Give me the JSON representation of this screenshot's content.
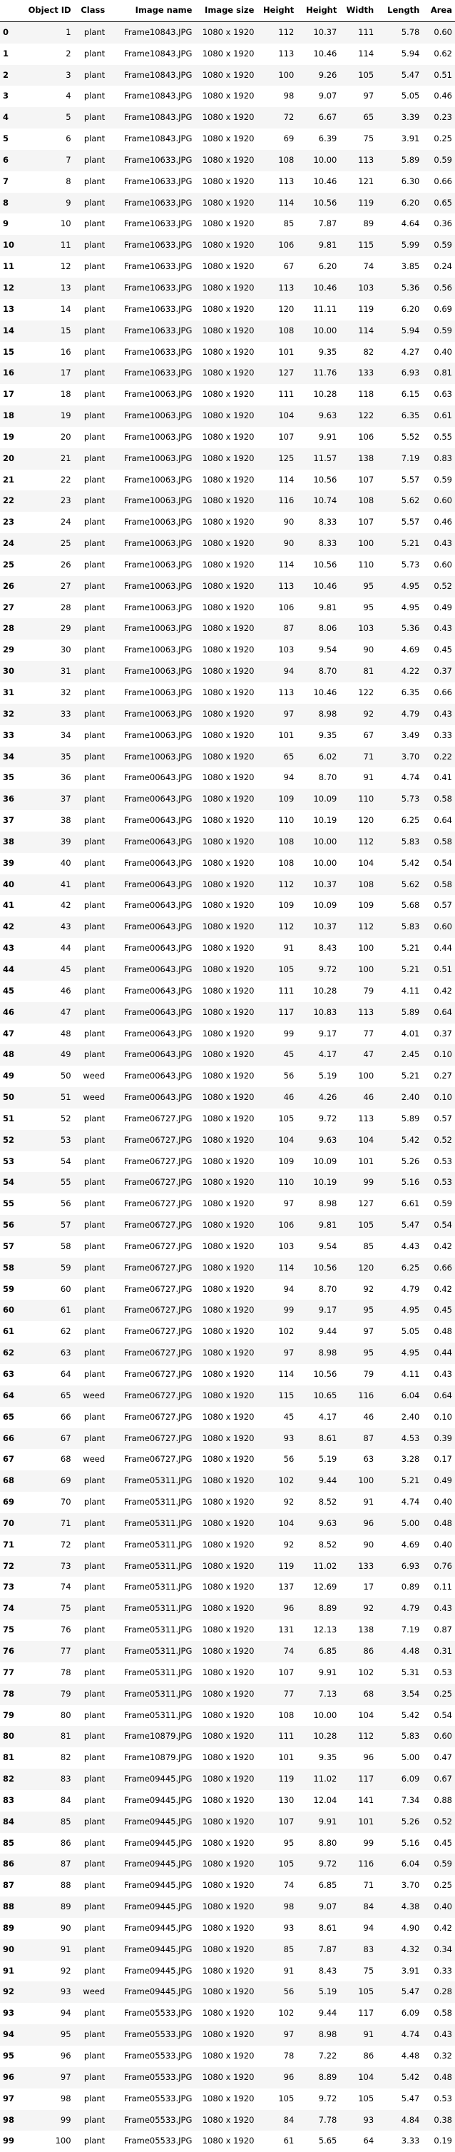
{
  "columns": [
    "",
    "Object ID",
    "Class",
    "Image name",
    "Image size",
    "Height",
    "Height",
    "Width",
    "Length",
    "Area"
  ],
  "rows": [
    [
      "0",
      "1",
      "plant",
      "Frame10843.JPG",
      "1080 x 1920",
      "112",
      "10.37",
      "111",
      "5.78",
      "0.60"
    ],
    [
      "1",
      "2",
      "plant",
      "Frame10843.JPG",
      "1080 x 1920",
      "113",
      "10.46",
      "114",
      "5.94",
      "0.62"
    ],
    [
      "2",
      "3",
      "plant",
      "Frame10843.JPG",
      "1080 x 1920",
      "100",
      "9.26",
      "105",
      "5.47",
      "0.51"
    ],
    [
      "3",
      "4",
      "plant",
      "Frame10843.JPG",
      "1080 x 1920",
      "98",
      "9.07",
      "97",
      "5.05",
      "0.46"
    ],
    [
      "4",
      "5",
      "plant",
      "Frame10843.JPG",
      "1080 x 1920",
      "72",
      "6.67",
      "65",
      "3.39",
      "0.23"
    ],
    [
      "5",
      "6",
      "plant",
      "Frame10843.JPG",
      "1080 x 1920",
      "69",
      "6.39",
      "75",
      "3.91",
      "0.25"
    ],
    [
      "6",
      "7",
      "plant",
      "Frame10633.JPG",
      "1080 x 1920",
      "108",
      "10.00",
      "113",
      "5.89",
      "0.59"
    ],
    [
      "7",
      "8",
      "plant",
      "Frame10633.JPG",
      "1080 x 1920",
      "113",
      "10.46",
      "121",
      "6.30",
      "0.66"
    ],
    [
      "8",
      "9",
      "plant",
      "Frame10633.JPG",
      "1080 x 1920",
      "114",
      "10.56",
      "119",
      "6.20",
      "0.65"
    ],
    [
      "9",
      "10",
      "plant",
      "Frame10633.JPG",
      "1080 x 1920",
      "85",
      "7.87",
      "89",
      "4.64",
      "0.36"
    ],
    [
      "10",
      "11",
      "plant",
      "Frame10633.JPG",
      "1080 x 1920",
      "106",
      "9.81",
      "115",
      "5.99",
      "0.59"
    ],
    [
      "11",
      "12",
      "plant",
      "Frame10633.JPG",
      "1080 x 1920",
      "67",
      "6.20",
      "74",
      "3.85",
      "0.24"
    ],
    [
      "12",
      "13",
      "plant",
      "Frame10633.JPG",
      "1080 x 1920",
      "113",
      "10.46",
      "103",
      "5.36",
      "0.56"
    ],
    [
      "13",
      "14",
      "plant",
      "Frame10633.JPG",
      "1080 x 1920",
      "120",
      "11.11",
      "119",
      "6.20",
      "0.69"
    ],
    [
      "14",
      "15",
      "plant",
      "Frame10633.JPG",
      "1080 x 1920",
      "108",
      "10.00",
      "114",
      "5.94",
      "0.59"
    ],
    [
      "15",
      "16",
      "plant",
      "Frame10633.JPG",
      "1080 x 1920",
      "101",
      "9.35",
      "82",
      "4.27",
      "0.40"
    ],
    [
      "16",
      "17",
      "plant",
      "Frame10633.JPG",
      "1080 x 1920",
      "127",
      "11.76",
      "133",
      "6.93",
      "0.81"
    ],
    [
      "17",
      "18",
      "plant",
      "Frame10063.JPG",
      "1080 x 1920",
      "111",
      "10.28",
      "118",
      "6.15",
      "0.63"
    ],
    [
      "18",
      "19",
      "plant",
      "Frame10063.JPG",
      "1080 x 1920",
      "104",
      "9.63",
      "122",
      "6.35",
      "0.61"
    ],
    [
      "19",
      "20",
      "plant",
      "Frame10063.JPG",
      "1080 x 1920",
      "107",
      "9.91",
      "106",
      "5.52",
      "0.55"
    ],
    [
      "20",
      "21",
      "plant",
      "Frame10063.JPG",
      "1080 x 1920",
      "125",
      "11.57",
      "138",
      "7.19",
      "0.83"
    ],
    [
      "21",
      "22",
      "plant",
      "Frame10063.JPG",
      "1080 x 1920",
      "114",
      "10.56",
      "107",
      "5.57",
      "0.59"
    ],
    [
      "22",
      "23",
      "plant",
      "Frame10063.JPG",
      "1080 x 1920",
      "116",
      "10.74",
      "108",
      "5.62",
      "0.60"
    ],
    [
      "23",
      "24",
      "plant",
      "Frame10063.JPG",
      "1080 x 1920",
      "90",
      "8.33",
      "107",
      "5.57",
      "0.46"
    ],
    [
      "24",
      "25",
      "plant",
      "Frame10063.JPG",
      "1080 x 1920",
      "90",
      "8.33",
      "100",
      "5.21",
      "0.43"
    ],
    [
      "25",
      "26",
      "plant",
      "Frame10063.JPG",
      "1080 x 1920",
      "114",
      "10.56",
      "110",
      "5.73",
      "0.60"
    ],
    [
      "26",
      "27",
      "plant",
      "Frame10063.JPG",
      "1080 x 1920",
      "113",
      "10.46",
      "95",
      "4.95",
      "0.52"
    ],
    [
      "27",
      "28",
      "plant",
      "Frame10063.JPG",
      "1080 x 1920",
      "106",
      "9.81",
      "95",
      "4.95",
      "0.49"
    ],
    [
      "28",
      "29",
      "plant",
      "Frame10063.JPG",
      "1080 x 1920",
      "87",
      "8.06",
      "103",
      "5.36",
      "0.43"
    ],
    [
      "29",
      "30",
      "plant",
      "Frame10063.JPG",
      "1080 x 1920",
      "103",
      "9.54",
      "90",
      "4.69",
      "0.45"
    ],
    [
      "30",
      "31",
      "plant",
      "Frame10063.JPG",
      "1080 x 1920",
      "94",
      "8.70",
      "81",
      "4.22",
      "0.37"
    ],
    [
      "31",
      "32",
      "plant",
      "Frame10063.JPG",
      "1080 x 1920",
      "113",
      "10.46",
      "122",
      "6.35",
      "0.66"
    ],
    [
      "32",
      "33",
      "plant",
      "Frame10063.JPG",
      "1080 x 1920",
      "97",
      "8.98",
      "92",
      "4.79",
      "0.43"
    ],
    [
      "33",
      "34",
      "plant",
      "Frame10063.JPG",
      "1080 x 1920",
      "101",
      "9.35",
      "67",
      "3.49",
      "0.33"
    ],
    [
      "34",
      "35",
      "plant",
      "Frame10063.JPG",
      "1080 x 1920",
      "65",
      "6.02",
      "71",
      "3.70",
      "0.22"
    ],
    [
      "35",
      "36",
      "plant",
      "Frame00643.JPG",
      "1080 x 1920",
      "94",
      "8.70",
      "91",
      "4.74",
      "0.41"
    ],
    [
      "36",
      "37",
      "plant",
      "Frame00643.JPG",
      "1080 x 1920",
      "109",
      "10.09",
      "110",
      "5.73",
      "0.58"
    ],
    [
      "37",
      "38",
      "plant",
      "Frame00643.JPG",
      "1080 x 1920",
      "110",
      "10.19",
      "120",
      "6.25",
      "0.64"
    ],
    [
      "38",
      "39",
      "plant",
      "Frame00643.JPG",
      "1080 x 1920",
      "108",
      "10.00",
      "112",
      "5.83",
      "0.58"
    ],
    [
      "39",
      "40",
      "plant",
      "Frame00643.JPG",
      "1080 x 1920",
      "108",
      "10.00",
      "104",
      "5.42",
      "0.54"
    ],
    [
      "40",
      "41",
      "plant",
      "Frame00643.JPG",
      "1080 x 1920",
      "112",
      "10.37",
      "108",
      "5.62",
      "0.58"
    ],
    [
      "41",
      "42",
      "plant",
      "Frame00643.JPG",
      "1080 x 1920",
      "109",
      "10.09",
      "109",
      "5.68",
      "0.57"
    ],
    [
      "42",
      "43",
      "plant",
      "Frame00643.JPG",
      "1080 x 1920",
      "112",
      "10.37",
      "112",
      "5.83",
      "0.60"
    ],
    [
      "43",
      "44",
      "plant",
      "Frame00643.JPG",
      "1080 x 1920",
      "91",
      "8.43",
      "100",
      "5.21",
      "0.44"
    ],
    [
      "44",
      "45",
      "plant",
      "Frame00643.JPG",
      "1080 x 1920",
      "105",
      "9.72",
      "100",
      "5.21",
      "0.51"
    ],
    [
      "45",
      "46",
      "plant",
      "Frame00643.JPG",
      "1080 x 1920",
      "111",
      "10.28",
      "79",
      "4.11",
      "0.42"
    ],
    [
      "46",
      "47",
      "plant",
      "Frame00643.JPG",
      "1080 x 1920",
      "117",
      "10.83",
      "113",
      "5.89",
      "0.64"
    ],
    [
      "47",
      "48",
      "plant",
      "Frame00643.JPG",
      "1080 x 1920",
      "99",
      "9.17",
      "77",
      "4.01",
      "0.37"
    ],
    [
      "48",
      "49",
      "plant",
      "Frame00643.JPG",
      "1080 x 1920",
      "45",
      "4.17",
      "47",
      "2.45",
      "0.10"
    ],
    [
      "49",
      "50",
      "weed",
      "Frame00643.JPG",
      "1080 x 1920",
      "56",
      "5.19",
      "100",
      "5.21",
      "0.27"
    ],
    [
      "50",
      "51",
      "weed",
      "Frame00643.JPG",
      "1080 x 1920",
      "46",
      "4.26",
      "46",
      "2.40",
      "0.10"
    ],
    [
      "51",
      "52",
      "plant",
      "Frame06727.JPG",
      "1080 x 1920",
      "105",
      "9.72",
      "113",
      "5.89",
      "0.57"
    ],
    [
      "52",
      "53",
      "plant",
      "Frame06727.JPG",
      "1080 x 1920",
      "104",
      "9.63",
      "104",
      "5.42",
      "0.52"
    ],
    [
      "53",
      "54",
      "plant",
      "Frame06727.JPG",
      "1080 x 1920",
      "109",
      "10.09",
      "101",
      "5.26",
      "0.53"
    ],
    [
      "54",
      "55",
      "plant",
      "Frame06727.JPG",
      "1080 x 1920",
      "110",
      "10.19",
      "99",
      "5.16",
      "0.53"
    ],
    [
      "55",
      "56",
      "plant",
      "Frame06727.JPG",
      "1080 x 1920",
      "97",
      "8.98",
      "127",
      "6.61",
      "0.59"
    ],
    [
      "56",
      "57",
      "plant",
      "Frame06727.JPG",
      "1080 x 1920",
      "106",
      "9.81",
      "105",
      "5.47",
      "0.54"
    ],
    [
      "57",
      "58",
      "plant",
      "Frame06727.JPG",
      "1080 x 1920",
      "103",
      "9.54",
      "85",
      "4.43",
      "0.42"
    ],
    [
      "58",
      "59",
      "plant",
      "Frame06727.JPG",
      "1080 x 1920",
      "114",
      "10.56",
      "120",
      "6.25",
      "0.66"
    ],
    [
      "59",
      "60",
      "plant",
      "Frame06727.JPG",
      "1080 x 1920",
      "94",
      "8.70",
      "92",
      "4.79",
      "0.42"
    ],
    [
      "60",
      "61",
      "plant",
      "Frame06727.JPG",
      "1080 x 1920",
      "99",
      "9.17",
      "95",
      "4.95",
      "0.45"
    ],
    [
      "61",
      "62",
      "plant",
      "Frame06727.JPG",
      "1080 x 1920",
      "102",
      "9.44",
      "97",
      "5.05",
      "0.48"
    ],
    [
      "62",
      "63",
      "plant",
      "Frame06727.JPG",
      "1080 x 1920",
      "97",
      "8.98",
      "95",
      "4.95",
      "0.44"
    ],
    [
      "63",
      "64",
      "plant",
      "Frame06727.JPG",
      "1080 x 1920",
      "114",
      "10.56",
      "79",
      "4.11",
      "0.43"
    ],
    [
      "64",
      "65",
      "weed",
      "Frame06727.JPG",
      "1080 x 1920",
      "115",
      "10.65",
      "116",
      "6.04",
      "0.64"
    ],
    [
      "65",
      "66",
      "plant",
      "Frame06727.JPG",
      "1080 x 1920",
      "45",
      "4.17",
      "46",
      "2.40",
      "0.10"
    ],
    [
      "66",
      "67",
      "plant",
      "Frame06727.JPG",
      "1080 x 1920",
      "93",
      "8.61",
      "87",
      "4.53",
      "0.39"
    ],
    [
      "67",
      "68",
      "weed",
      "Frame06727.JPG",
      "1080 x 1920",
      "56",
      "5.19",
      "63",
      "3.28",
      "0.17"
    ],
    [
      "68",
      "69",
      "plant",
      "Frame05311.JPG",
      "1080 x 1920",
      "102",
      "9.44",
      "100",
      "5.21",
      "0.49"
    ],
    [
      "69",
      "70",
      "plant",
      "Frame05311.JPG",
      "1080 x 1920",
      "92",
      "8.52",
      "91",
      "4.74",
      "0.40"
    ],
    [
      "70",
      "71",
      "plant",
      "Frame05311.JPG",
      "1080 x 1920",
      "104",
      "9.63",
      "96",
      "5.00",
      "0.48"
    ],
    [
      "71",
      "72",
      "plant",
      "Frame05311.JPG",
      "1080 x 1920",
      "92",
      "8.52",
      "90",
      "4.69",
      "0.40"
    ],
    [
      "72",
      "73",
      "plant",
      "Frame05311.JPG",
      "1080 x 1920",
      "119",
      "11.02",
      "133",
      "6.93",
      "0.76"
    ],
    [
      "73",
      "74",
      "plant",
      "Frame05311.JPG",
      "1080 x 1920",
      "137",
      "12.69",
      "17",
      "0.89",
      "0.11"
    ],
    [
      "74",
      "75",
      "plant",
      "Frame05311.JPG",
      "1080 x 1920",
      "96",
      "8.89",
      "92",
      "4.79",
      "0.43"
    ],
    [
      "75",
      "76",
      "plant",
      "Frame05311.JPG",
      "1080 x 1920",
      "131",
      "12.13",
      "138",
      "7.19",
      "0.87"
    ],
    [
      "76",
      "77",
      "plant",
      "Frame05311.JPG",
      "1080 x 1920",
      "74",
      "6.85",
      "86",
      "4.48",
      "0.31"
    ],
    [
      "77",
      "78",
      "plant",
      "Frame05311.JPG",
      "1080 x 1920",
      "107",
      "9.91",
      "102",
      "5.31",
      "0.53"
    ],
    [
      "78",
      "79",
      "plant",
      "Frame05311.JPG",
      "1080 x 1920",
      "77",
      "7.13",
      "68",
      "3.54",
      "0.25"
    ],
    [
      "79",
      "80",
      "plant",
      "Frame05311.JPG",
      "1080 x 1920",
      "108",
      "10.00",
      "104",
      "5.42",
      "0.54"
    ],
    [
      "80",
      "81",
      "plant",
      "Frame10879.JPG",
      "1080 x 1920",
      "111",
      "10.28",
      "112",
      "5.83",
      "0.60"
    ],
    [
      "81",
      "82",
      "plant",
      "Frame10879.JPG",
      "1080 x 1920",
      "101",
      "9.35",
      "96",
      "5.00",
      "0.47"
    ],
    [
      "82",
      "83",
      "plant",
      "Frame09445.JPG",
      "1080 x 1920",
      "119",
      "11.02",
      "117",
      "6.09",
      "0.67"
    ],
    [
      "83",
      "84",
      "plant",
      "Frame09445.JPG",
      "1080 x 1920",
      "130",
      "12.04",
      "141",
      "7.34",
      "0.88"
    ],
    [
      "84",
      "85",
      "plant",
      "Frame09445.JPG",
      "1080 x 1920",
      "107",
      "9.91",
      "101",
      "5.26",
      "0.52"
    ],
    [
      "85",
      "86",
      "plant",
      "Frame09445.JPG",
      "1080 x 1920",
      "95",
      "8.80",
      "99",
      "5.16",
      "0.45"
    ],
    [
      "86",
      "87",
      "plant",
      "Frame09445.JPG",
      "1080 x 1920",
      "105",
      "9.72",
      "116",
      "6.04",
      "0.59"
    ],
    [
      "87",
      "88",
      "plant",
      "Frame09445.JPG",
      "1080 x 1920",
      "74",
      "6.85",
      "71",
      "3.70",
      "0.25"
    ],
    [
      "88",
      "89",
      "plant",
      "Frame09445.JPG",
      "1080 x 1920",
      "98",
      "9.07",
      "84",
      "4.38",
      "0.40"
    ],
    [
      "89",
      "90",
      "plant",
      "Frame09445.JPG",
      "1080 x 1920",
      "93",
      "8.61",
      "94",
      "4.90",
      "0.42"
    ],
    [
      "90",
      "91",
      "plant",
      "Frame09445.JPG",
      "1080 x 1920",
      "85",
      "7.87",
      "83",
      "4.32",
      "0.34"
    ],
    [
      "91",
      "92",
      "plant",
      "Frame09445.JPG",
      "1080 x 1920",
      "91",
      "8.43",
      "75",
      "3.91",
      "0.33"
    ],
    [
      "92",
      "93",
      "weed",
      "Frame09445.JPG",
      "1080 x 1920",
      "56",
      "5.19",
      "105",
      "5.47",
      "0.28"
    ],
    [
      "93",
      "94",
      "plant",
      "Frame05533.JPG",
      "1080 x 1920",
      "102",
      "9.44",
      "117",
      "6.09",
      "0.58"
    ],
    [
      "94",
      "95",
      "plant",
      "Frame05533.JPG",
      "1080 x 1920",
      "97",
      "8.98",
      "91",
      "4.74",
      "0.43"
    ],
    [
      "95",
      "96",
      "plant",
      "Frame05533.JPG",
      "1080 x 1920",
      "78",
      "7.22",
      "86",
      "4.48",
      "0.32"
    ],
    [
      "96",
      "97",
      "plant",
      "Frame05533.JPG",
      "1080 x 1920",
      "96",
      "8.89",
      "104",
      "5.42",
      "0.48"
    ],
    [
      "97",
      "98",
      "plant",
      "Frame05533.JPG",
      "1080 x 1920",
      "105",
      "9.72",
      "105",
      "5.47",
      "0.53"
    ],
    [
      "98",
      "99",
      "plant",
      "Frame05533.JPG",
      "1080 x 1920",
      "84",
      "7.78",
      "93",
      "4.84",
      "0.38"
    ],
    [
      "99",
      "100",
      "plant",
      "Frame05533.JPG",
      "1080 x 1920",
      "61",
      "5.65",
      "64",
      "3.33",
      "0.19"
    ]
  ]
}
